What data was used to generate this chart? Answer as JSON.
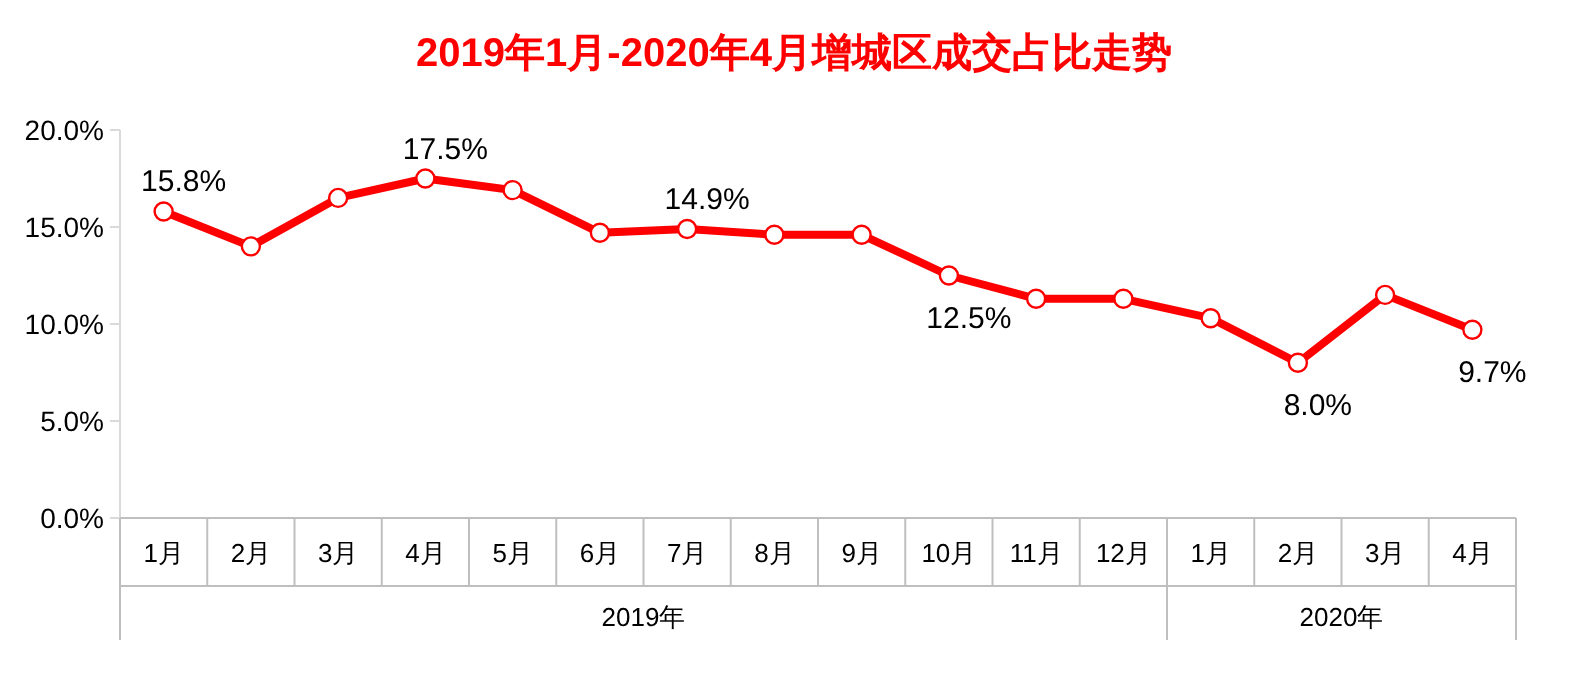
{
  "chart_data": {
    "type": "line",
    "title": "2019年1月-2020年4月增城区成交占比走势",
    "categories": [
      "1月",
      "2月",
      "3月",
      "4月",
      "5月",
      "6月",
      "7月",
      "8月",
      "9月",
      "10月",
      "11月",
      "12月",
      "1月",
      "2月",
      "3月",
      "4月"
    ],
    "series": [
      {
        "color": "#ff0000",
        "values": [
          15.8,
          14.0,
          16.5,
          17.5,
          16.9,
          14.7,
          14.9,
          14.6,
          14.6,
          12.5,
          11.3,
          11.3,
          10.3,
          8.0,
          11.5,
          9.7
        ],
        "value_labels": [
          "15.8%",
          null,
          null,
          "17.5%",
          null,
          null,
          "14.9%",
          null,
          null,
          "12.5%",
          null,
          null,
          null,
          "8.0%",
          null,
          "9.7%"
        ]
      }
    ],
    "annotations": [
      "2019年",
      "2020年"
    ],
    "ylim": [
      0,
      20
    ],
    "yticks": [
      {
        "value": 0,
        "label": "0.0%"
      },
      {
        "value": 5,
        "label": "5.0%"
      },
      {
        "value": 10,
        "label": "10.0%"
      },
      {
        "value": 15,
        "label": "15.0%"
      },
      {
        "value": 20,
        "label": "20.0%"
      }
    ],
    "marker": "circle",
    "line_style": "solid"
  }
}
